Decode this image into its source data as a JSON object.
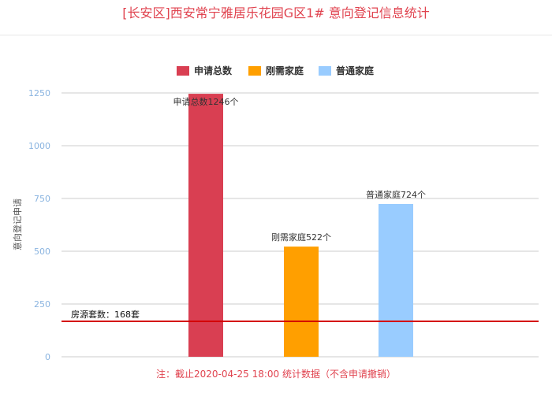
{
  "title": "[长安区]西安常宁雅居乐花园G区1# 意向登记信息统计",
  "note": "注：截止2020-04-25 18:00 统计数据（不含申请撤销）",
  "chart_data": {
    "type": "bar",
    "ylabel": "意向登记申请",
    "ylim": [
      0,
      1250
    ],
    "yticks": [
      0,
      250,
      500,
      750,
      1000,
      1250
    ],
    "grid": true,
    "legend_position": "top-center",
    "series": [
      {
        "name": "申请总数",
        "value": 1246,
        "color": "#d93f52",
        "label": "申请总数1246个"
      },
      {
        "name": "刚需家庭",
        "value": 522,
        "color": "#ff9f00",
        "label": "刚需家庭522个"
      },
      {
        "name": "普通家庭",
        "value": 724,
        "color": "#99ccff",
        "label": "普通家庭724个"
      }
    ],
    "reference_line": {
      "value": 168,
      "label": "房源套数：168套",
      "color": "#d40000"
    }
  }
}
